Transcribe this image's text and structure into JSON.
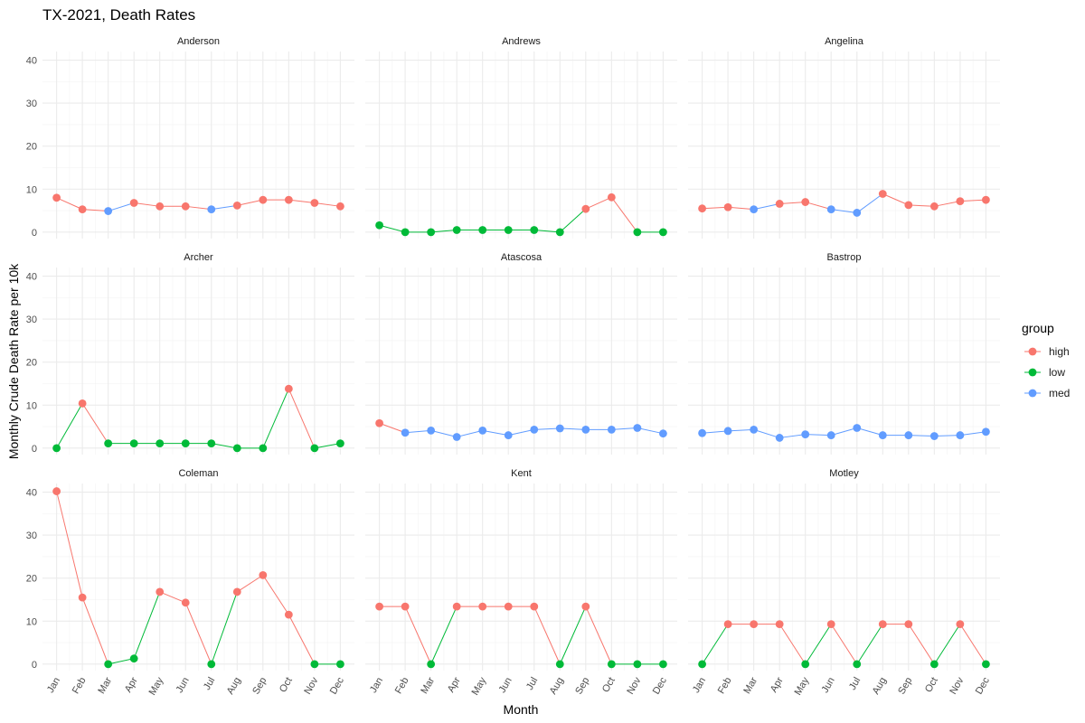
{
  "chart_data": {
    "type": "line",
    "title": "TX-2021, Death Rates",
    "xlabel": "Month",
    "ylabel": "Monthly Crude Death Rate per 10k",
    "ylim": [
      -1.5,
      42
    ],
    "yticks": [
      0,
      10,
      20,
      30,
      40
    ],
    "categories": [
      "Jan",
      "Feb",
      "Mar",
      "Apr",
      "May",
      "Jun",
      "Jul",
      "Aug",
      "Sep",
      "Oct",
      "Nov",
      "Dec"
    ],
    "grid": true,
    "legend": {
      "title": "group",
      "placement": "right",
      "entries": [
        {
          "name": "high",
          "color": "#F8766D"
        },
        {
          "name": "low",
          "color": "#00BA38"
        },
        {
          "name": "med",
          "color": "#619CFF"
        }
      ]
    },
    "panels": [
      {
        "name": "Anderson",
        "values": [
          8.0,
          5.3,
          4.9,
          6.8,
          6.0,
          6.0,
          5.3,
          6.2,
          7.5,
          7.5,
          6.8,
          6.0
        ],
        "groups": [
          "high",
          "high",
          "med",
          "high",
          "high",
          "high",
          "med",
          "high",
          "high",
          "high",
          "high",
          "high"
        ]
      },
      {
        "name": "Andrews",
        "values": [
          1.6,
          0,
          0,
          0.5,
          0.5,
          0.5,
          0.5,
          0,
          5.4,
          8.1,
          0,
          0
        ],
        "groups": [
          "low",
          "low",
          "low",
          "low",
          "low",
          "low",
          "low",
          "low",
          "high",
          "high",
          "low",
          "low"
        ]
      },
      {
        "name": "Angelina",
        "values": [
          5.5,
          5.8,
          5.3,
          6.6,
          7.0,
          5.3,
          4.5,
          8.9,
          6.3,
          6.0,
          7.2,
          7.5
        ],
        "groups": [
          "high",
          "high",
          "med",
          "high",
          "high",
          "med",
          "med",
          "high",
          "high",
          "high",
          "high",
          "high"
        ]
      },
      {
        "name": "Archer",
        "values": [
          0,
          10.4,
          1.1,
          1.1,
          1.1,
          1.1,
          1.1,
          0,
          0,
          13.8,
          0,
          1.1
        ],
        "groups": [
          "low",
          "high",
          "low",
          "low",
          "low",
          "low",
          "low",
          "low",
          "low",
          "high",
          "low",
          "low"
        ]
      },
      {
        "name": "Atascosa",
        "values": [
          5.8,
          3.6,
          4.1,
          2.6,
          4.1,
          3.0,
          4.3,
          4.6,
          4.3,
          4.3,
          4.7,
          3.4
        ],
        "groups": [
          "high",
          "med",
          "med",
          "med",
          "med",
          "med",
          "med",
          "med",
          "med",
          "med",
          "med",
          "med"
        ]
      },
      {
        "name": "Bastrop",
        "values": [
          3.5,
          4.0,
          4.3,
          2.4,
          3.2,
          3.0,
          4.7,
          3.0,
          3.0,
          2.8,
          3.0,
          3.8
        ],
        "groups": [
          "med",
          "med",
          "med",
          "med",
          "med",
          "med",
          "med",
          "med",
          "med",
          "med",
          "med",
          "med"
        ]
      },
      {
        "name": "Coleman",
        "values": [
          40.2,
          15.5,
          0,
          1.3,
          16.8,
          14.3,
          0,
          16.8,
          20.7,
          11.5,
          0,
          0
        ],
        "groups": [
          "high",
          "high",
          "low",
          "low",
          "high",
          "high",
          "low",
          "high",
          "high",
          "high",
          "low",
          "low"
        ]
      },
      {
        "name": "Kent",
        "values": [
          13.4,
          13.4,
          0,
          13.4,
          13.4,
          13.4,
          13.4,
          0,
          13.4,
          0,
          0,
          0
        ],
        "groups": [
          "high",
          "high",
          "low",
          "high",
          "high",
          "high",
          "high",
          "low",
          "high",
          "low",
          "low",
          "low"
        ]
      },
      {
        "name": "Motley",
        "values": [
          0,
          9.3,
          9.3,
          9.3,
          0,
          9.3,
          0,
          9.3,
          9.3,
          0,
          9.3,
          0
        ],
        "groups": [
          "low",
          "high",
          "high",
          "high",
          "low",
          "high",
          "low",
          "high",
          "high",
          "low",
          "high",
          "low"
        ]
      }
    ]
  }
}
